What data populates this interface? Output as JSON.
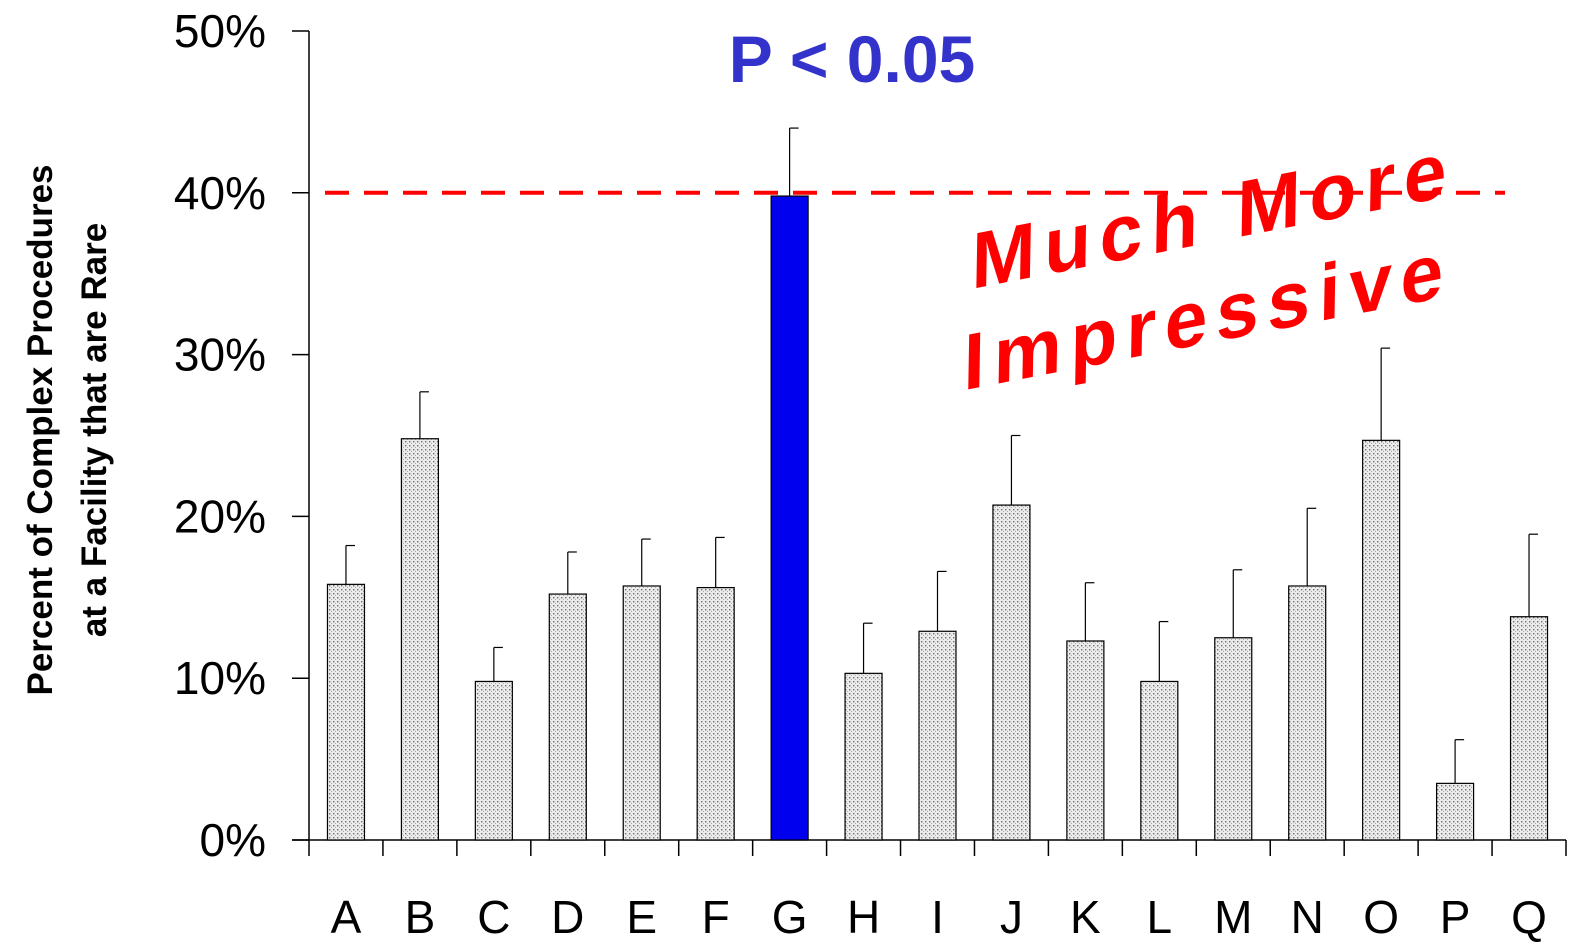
{
  "chart_data": {
    "type": "bar",
    "ylabel_line1": "Percent of Complex Procedures",
    "ylabel_line2": "at a Facility that are Rare",
    "xlabel": "",
    "ylim": [
      0,
      50
    ],
    "yticks": [
      "0%",
      "10%",
      "20%",
      "30%",
      "40%",
      "50%"
    ],
    "ytick_values": [
      0,
      10,
      20,
      30,
      40,
      50
    ],
    "categories": [
      "A",
      "B",
      "C",
      "D",
      "E",
      "F",
      "G",
      "H",
      "I",
      "J",
      "K",
      "L",
      "M",
      "N",
      "O",
      "P",
      "Q"
    ],
    "values": [
      15.8,
      24.8,
      9.8,
      15.2,
      15.7,
      15.6,
      39.8,
      10.3,
      12.9,
      20.7,
      12.3,
      9.8,
      12.5,
      15.7,
      24.7,
      3.5,
      13.8
    ],
    "error_upper": [
      18.2,
      27.7,
      11.9,
      17.8,
      18.6,
      18.7,
      44.0,
      13.4,
      16.6,
      25.0,
      15.9,
      13.5,
      16.7,
      20.5,
      30.4,
      6.2,
      18.9
    ],
    "highlight_category": "G",
    "reference_line": 40,
    "annotation_pvalue": "P < 0.05",
    "annotation_line1": "Much More",
    "annotation_line2": "Impressive",
    "colors": {
      "bar_fill": "#e8e8e8",
      "bar_dots": "#7a7a7a",
      "highlight": "#0000ee",
      "reference_line": "#ff0000",
      "annotation": "#ff0000",
      "pvalue": "#3333cc"
    }
  }
}
